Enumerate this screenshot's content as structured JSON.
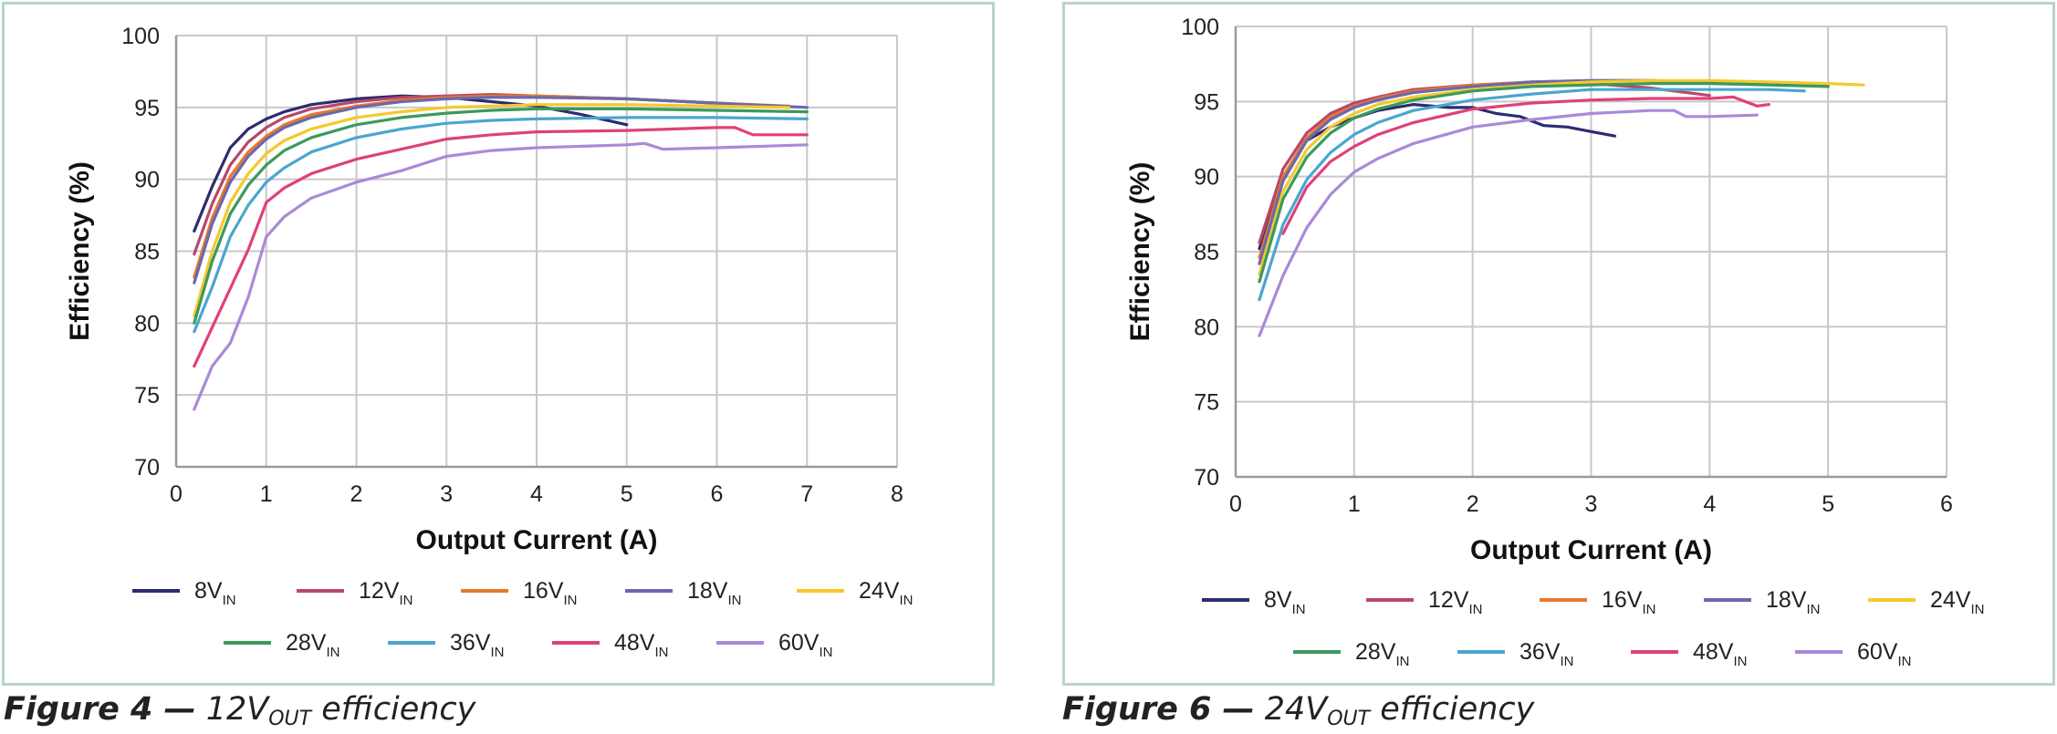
{
  "captions": [
    {
      "label": "Figure 4 —",
      "main": "12V",
      "sub": "OUT",
      "tail": "efficiency"
    },
    {
      "label": "Figure 6 —",
      "main": "24V",
      "sub": "OUT",
      "tail": "efficiency"
    }
  ],
  "chart_data": [
    {
      "type": "line",
      "title": "",
      "xlabel": "Output Current (A)",
      "ylabel": "Efficiency (%)",
      "xlim": [
        0,
        8
      ],
      "ylim": [
        70,
        100
      ],
      "xticks": [
        0,
        1,
        2,
        3,
        4,
        5,
        6,
        7,
        8
      ],
      "yticks": [
        70,
        75,
        80,
        85,
        90,
        95,
        100
      ],
      "grid": true,
      "legend_position": "bottom",
      "series": [
        {
          "name": "8V",
          "name_sub": "IN",
          "color": "#2c2c6e",
          "x": [
            0.2,
            0.4,
            0.6,
            0.8,
            1.0,
            1.2,
            1.5,
            2.0,
            2.5,
            3.0,
            3.5,
            4.0,
            4.5,
            5.0
          ],
          "y": [
            86.4,
            89.5,
            92.2,
            93.5,
            94.2,
            94.7,
            95.2,
            95.6,
            95.8,
            95.7,
            95.4,
            95.1,
            94.5,
            93.8
          ]
        },
        {
          "name": "12V",
          "name_sub": "IN",
          "color": "#b8476b",
          "x": [
            0.2,
            0.4,
            0.6,
            0.8,
            1.0,
            1.2,
            1.5,
            2.0,
            2.5,
            3.0,
            3.5,
            4.0,
            5.0,
            6.0,
            6.8
          ],
          "y": [
            84.8,
            88.3,
            91.0,
            92.6,
            93.6,
            94.3,
            94.9,
            95.4,
            95.7,
            95.8,
            95.9,
            95.8,
            95.6,
            95.3,
            95.0
          ]
        },
        {
          "name": "16V",
          "name_sub": "IN",
          "color": "#e8792c",
          "x": [
            0.2,
            0.4,
            0.6,
            0.8,
            1.0,
            1.2,
            1.5,
            2.0,
            2.5,
            3.0,
            3.5,
            4.0,
            5.0,
            6.0,
            6.8
          ],
          "y": [
            83.2,
            87.3,
            90.2,
            91.9,
            93.0,
            93.8,
            94.5,
            95.1,
            95.5,
            95.7,
            95.8,
            95.8,
            95.6,
            95.3,
            95.1
          ]
        },
        {
          "name": "18V",
          "name_sub": "IN",
          "color": "#6b68ad",
          "x": [
            0.2,
            0.4,
            0.6,
            0.8,
            1.0,
            1.2,
            1.5,
            2.0,
            2.5,
            3.0,
            3.5,
            4.0,
            5.0,
            6.0,
            7.0
          ],
          "y": [
            82.8,
            86.9,
            89.8,
            91.6,
            92.8,
            93.6,
            94.3,
            95.0,
            95.4,
            95.6,
            95.7,
            95.7,
            95.6,
            95.3,
            95.0
          ]
        },
        {
          "name": "24V",
          "name_sub": "IN",
          "color": "#f5c92a",
          "x": [
            0.2,
            0.4,
            0.6,
            0.8,
            1.0,
            1.2,
            1.5,
            2.0,
            2.5,
            3.0,
            3.5,
            4.0,
            5.0,
            6.0,
            6.8
          ],
          "y": [
            80.5,
            85.0,
            88.4,
            90.4,
            91.8,
            92.7,
            93.5,
            94.3,
            94.7,
            95.0,
            95.1,
            95.2,
            95.2,
            95.1,
            95.0
          ]
        },
        {
          "name": "28V",
          "name_sub": "IN",
          "color": "#3a9a5c",
          "x": [
            0.2,
            0.4,
            0.6,
            0.8,
            1.0,
            1.2,
            1.5,
            2.0,
            2.5,
            3.0,
            3.5,
            4.0,
            5.0,
            6.0,
            7.0
          ],
          "y": [
            80.0,
            84.3,
            87.6,
            89.6,
            91.0,
            92.0,
            92.9,
            93.8,
            94.3,
            94.6,
            94.8,
            94.9,
            94.9,
            94.8,
            94.7
          ]
        },
        {
          "name": "36V",
          "name_sub": "IN",
          "color": "#4aa6cf",
          "x": [
            0.2,
            0.4,
            0.6,
            0.8,
            1.0,
            1.2,
            1.5,
            2.0,
            2.5,
            3.0,
            3.5,
            4.0,
            5.0,
            6.0,
            7.0
          ],
          "y": [
            79.4,
            82.5,
            86.0,
            88.2,
            89.8,
            90.8,
            91.9,
            92.9,
            93.5,
            93.9,
            94.1,
            94.2,
            94.3,
            94.3,
            94.2
          ]
        },
        {
          "name": "48V",
          "name_sub": "IN",
          "color": "#e0407a",
          "x": [
            0.2,
            0.4,
            0.6,
            0.8,
            1.0,
            1.2,
            1.5,
            2.0,
            2.5,
            3.0,
            3.5,
            4.0,
            5.0,
            6.0,
            6.2,
            6.4,
            7.0
          ],
          "y": [
            77.0,
            79.7,
            82.4,
            85.1,
            88.4,
            89.4,
            90.4,
            91.4,
            92.1,
            92.8,
            93.1,
            93.3,
            93.4,
            93.6,
            93.6,
            93.1,
            93.1
          ]
        },
        {
          "name": "60V",
          "name_sub": "IN",
          "color": "#a98ad8",
          "x": [
            0.2,
            0.4,
            0.6,
            0.8,
            1.0,
            1.2,
            1.5,
            2.0,
            2.5,
            3.0,
            3.5,
            4.0,
            5.0,
            5.2,
            5.4,
            6.0,
            7.0
          ],
          "y": [
            74.0,
            77.0,
            78.6,
            81.8,
            86.0,
            87.4,
            88.7,
            89.8,
            90.6,
            91.6,
            92.0,
            92.2,
            92.4,
            92.5,
            92.1,
            92.2,
            92.4
          ]
        }
      ]
    },
    {
      "type": "line",
      "title": "",
      "xlabel": "Output Current (A)",
      "ylabel": "Efficiency (%)",
      "xlim": [
        0,
        6
      ],
      "ylim": [
        70,
        100
      ],
      "xticks": [
        0,
        1,
        2,
        3,
        4,
        5,
        6
      ],
      "yticks": [
        70,
        75,
        80,
        85,
        90,
        95,
        100
      ],
      "grid": true,
      "legend_position": "bottom",
      "series": [
        {
          "name": "8V",
          "name_sub": "IN",
          "color": "#2c2c6e",
          "x": [
            0.2,
            0.4,
            0.6,
            0.8,
            1.0,
            1.2,
            1.5,
            1.8,
            2.0,
            2.2,
            2.4,
            2.6,
            2.8,
            3.0,
            3.2
          ],
          "y": [
            85.2,
            90.0,
            92.4,
            93.3,
            93.9,
            94.4,
            94.8,
            94.6,
            94.6,
            94.2,
            94.0,
            93.4,
            93.3,
            93.0,
            92.7
          ]
        },
        {
          "name": "12V",
          "name_sub": "IN",
          "color": "#b8476b",
          "x": [
            0.2,
            0.4,
            0.6,
            0.8,
            1.0,
            1.2,
            1.5,
            2.0,
            2.5,
            3.0,
            3.5,
            4.0
          ],
          "y": [
            85.6,
            90.5,
            92.9,
            94.2,
            94.9,
            95.3,
            95.8,
            96.1,
            96.2,
            96.2,
            95.9,
            95.4
          ]
        },
        {
          "name": "16V",
          "name_sub": "IN",
          "color": "#e8792c",
          "x": [
            0.2,
            0.4,
            0.6,
            0.8,
            1.0,
            1.2,
            1.5,
            2.0,
            2.5,
            3.0,
            3.5,
            4.0,
            4.5,
            5.0
          ],
          "y": [
            84.6,
            90.0,
            92.6,
            94.0,
            94.7,
            95.2,
            95.7,
            96.1,
            96.3,
            96.4,
            96.4,
            96.3,
            96.2,
            96.0
          ]
        },
        {
          "name": "18V",
          "name_sub": "IN",
          "color": "#6b68ad",
          "x": [
            0.2,
            0.4,
            0.6,
            0.8,
            1.0,
            1.2,
            1.5,
            2.0,
            2.5,
            3.0,
            3.5,
            4.0,
            4.5,
            5.0
          ],
          "y": [
            84.2,
            89.7,
            92.4,
            93.8,
            94.6,
            95.1,
            95.6,
            96.0,
            96.3,
            96.4,
            96.4,
            96.3,
            96.2,
            96.1
          ]
        },
        {
          "name": "24V",
          "name_sub": "IN",
          "color": "#f5c92a",
          "x": [
            0.2,
            0.4,
            0.6,
            0.8,
            1.0,
            1.2,
            1.5,
            2.0,
            2.5,
            3.0,
            3.5,
            4.0,
            4.5,
            5.0,
            5.3
          ],
          "y": [
            83.5,
            89.0,
            91.8,
            93.3,
            94.2,
            94.8,
            95.3,
            95.8,
            96.1,
            96.3,
            96.4,
            96.4,
            96.3,
            96.2,
            96.1
          ]
        },
        {
          "name": "28V",
          "name_sub": "IN",
          "color": "#3a9a5c",
          "x": [
            0.2,
            0.4,
            0.6,
            0.8,
            1.0,
            1.2,
            1.5,
            2.0,
            2.5,
            3.0,
            3.5,
            4.0,
            4.5,
            5.0
          ],
          "y": [
            83.0,
            88.5,
            91.3,
            92.9,
            93.9,
            94.5,
            95.1,
            95.7,
            96.0,
            96.1,
            96.2,
            96.2,
            96.1,
            96.0
          ]
        },
        {
          "name": "36V",
          "name_sub": "IN",
          "color": "#4aa6cf",
          "x": [
            0.2,
            0.4,
            0.6,
            0.8,
            1.0,
            1.2,
            1.5,
            2.0,
            2.5,
            3.0,
            3.5,
            4.0,
            4.5,
            4.8
          ],
          "y": [
            81.8,
            86.8,
            89.8,
            91.6,
            92.8,
            93.6,
            94.4,
            95.1,
            95.5,
            95.8,
            95.8,
            95.8,
            95.8,
            95.7
          ]
        },
        {
          "name": "48V",
          "name_sub": "IN",
          "color": "#e0407a",
          "x": [
            0.4,
            0.6,
            0.8,
            1.0,
            1.2,
            1.5,
            2.0,
            2.5,
            3.0,
            3.5,
            4.0,
            4.2,
            4.4,
            4.5
          ],
          "y": [
            86.2,
            89.3,
            91.0,
            92.0,
            92.8,
            93.6,
            94.5,
            94.9,
            95.1,
            95.2,
            95.2,
            95.3,
            94.7,
            94.8
          ]
        },
        {
          "name": "60V",
          "name_sub": "IN",
          "color": "#a98ad8",
          "x": [
            0.2,
            0.4,
            0.6,
            0.8,
            1.0,
            1.2,
            1.5,
            2.0,
            2.5,
            3.0,
            3.5,
            3.7,
            3.8,
            4.0,
            4.4
          ],
          "y": [
            79.4,
            83.4,
            86.6,
            88.8,
            90.3,
            91.2,
            92.2,
            93.3,
            93.8,
            94.2,
            94.4,
            94.4,
            94.0,
            94.0,
            94.1
          ]
        }
      ]
    }
  ]
}
